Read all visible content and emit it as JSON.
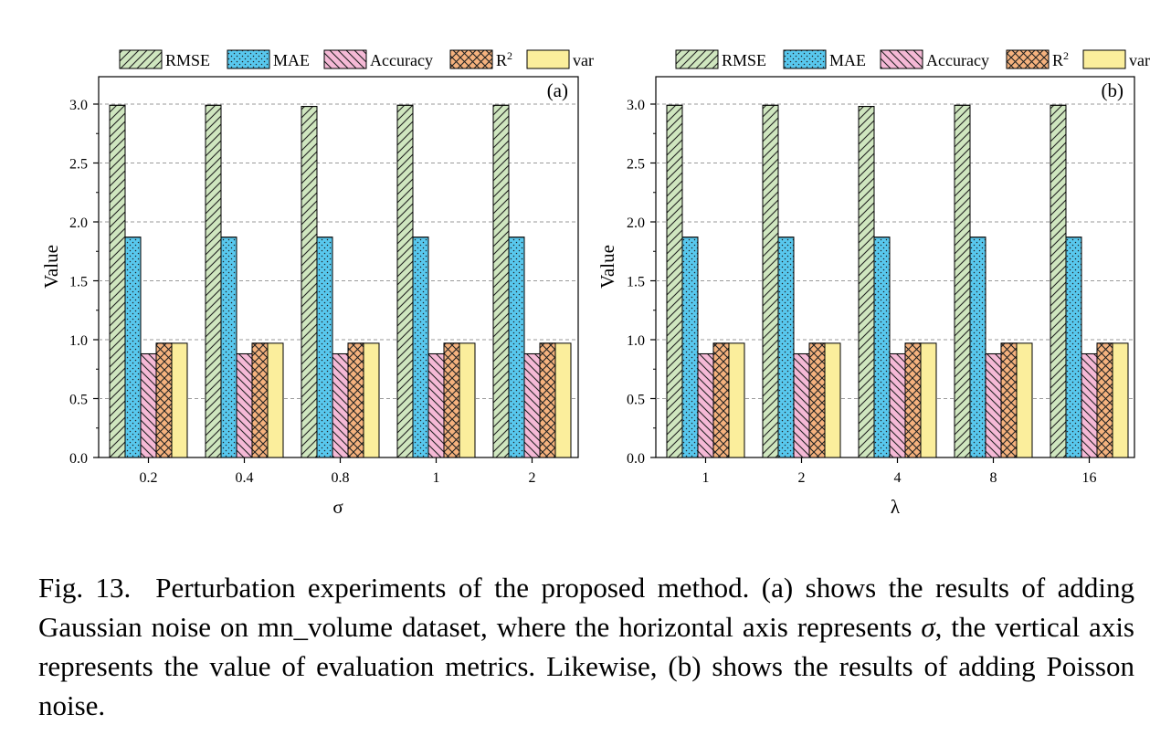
{
  "legend": [
    {
      "key": "rmse",
      "label": "RMSE",
      "sup": "",
      "fill": "#cfe6bf",
      "pattern": "diag-right"
    },
    {
      "key": "mae",
      "label": "MAE",
      "sup": "",
      "fill": "#58c8ee",
      "pattern": "dots"
    },
    {
      "key": "acc",
      "label": "Accuracy",
      "sup": "",
      "fill": "#f5b9d6",
      "pattern": "diag-left"
    },
    {
      "key": "r2",
      "label": "R",
      "sup": "2",
      "fill": "#f5b27e",
      "pattern": "cross"
    },
    {
      "key": "var",
      "label": "var",
      "sup": "",
      "fill": "#fbee9c",
      "pattern": "none"
    }
  ],
  "chart_data": [
    {
      "type": "bar",
      "panel_label": "(a)",
      "xlabel": "σ",
      "ylabel": "Value",
      "ylim": [
        0,
        3.0
      ],
      "yticks": [
        "0.0",
        "0.5",
        "1.0",
        "1.5",
        "2.0",
        "2.5",
        "3.0"
      ],
      "grid": true,
      "legend_position": "top",
      "categories": [
        "0.2",
        "0.4",
        "0.8",
        "1",
        "2"
      ],
      "series": [
        {
          "name": "RMSE",
          "values": [
            2.99,
            2.99,
            2.98,
            2.99,
            2.99
          ]
        },
        {
          "name": "MAE",
          "values": [
            1.87,
            1.87,
            1.87,
            1.87,
            1.87
          ]
        },
        {
          "name": "Accuracy",
          "values": [
            0.88,
            0.88,
            0.88,
            0.88,
            0.88
          ]
        },
        {
          "name": "R²",
          "values": [
            0.97,
            0.97,
            0.97,
            0.97,
            0.97
          ]
        },
        {
          "name": "var",
          "values": [
            0.97,
            0.97,
            0.97,
            0.97,
            0.97
          ]
        }
      ]
    },
    {
      "type": "bar",
      "panel_label": "(b)",
      "xlabel": "λ",
      "ylabel": "Value",
      "ylim": [
        0,
        3.0
      ],
      "yticks": [
        "0.0",
        "0.5",
        "1.0",
        "1.5",
        "2.0",
        "2.5",
        "3.0"
      ],
      "grid": true,
      "legend_position": "top",
      "categories": [
        "1",
        "2",
        "4",
        "8",
        "16"
      ],
      "series": [
        {
          "name": "RMSE",
          "values": [
            2.99,
            2.99,
            2.98,
            2.99,
            2.99
          ]
        },
        {
          "name": "MAE",
          "values": [
            1.87,
            1.87,
            1.87,
            1.87,
            1.87
          ]
        },
        {
          "name": "Accuracy",
          "values": [
            0.88,
            0.88,
            0.88,
            0.88,
            0.88
          ]
        },
        {
          "name": "R²",
          "values": [
            0.97,
            0.97,
            0.97,
            0.97,
            0.97
          ]
        },
        {
          "name": "var",
          "values": [
            0.97,
            0.97,
            0.97,
            0.97,
            0.97
          ]
        }
      ]
    }
  ],
  "caption": {
    "fig_label": "Fig. 13.",
    "part1": "Perturbation experiments of the proposed method. (a) shows the results of adding Gaussian noise on mn_volume dataset, where the horizontal axis represents ",
    "symbol": "σ",
    "part2": ", the vertical axis represents the value of evaluation metrics. Likewise, (b) shows the results of adding Poisson noise."
  }
}
